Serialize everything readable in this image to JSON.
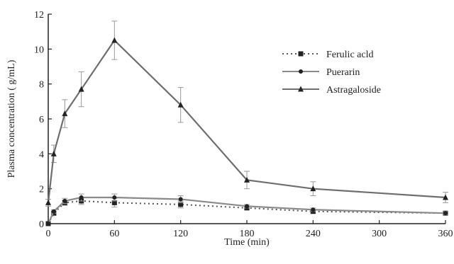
{
  "chart_data": {
    "type": "line",
    "title": "",
    "xlabel": "Time (min)",
    "ylabel": "Plasma concentration ( g/mL)",
    "xlim": [
      0,
      360
    ],
    "ylim": [
      0,
      12
    ],
    "xticks": [
      0,
      60,
      120,
      180,
      240,
      300,
      360
    ],
    "yticks": [
      0,
      2,
      4,
      6,
      8,
      10,
      12
    ],
    "grid": false,
    "legend_position": "top-right",
    "series": [
      {
        "name": "Ferulic acld",
        "style": "dotted",
        "marker": "square",
        "color": "#555555",
        "x": [
          0,
          5,
          15,
          30,
          60,
          120,
          180,
          240,
          360
        ],
        "y": [
          0,
          0.6,
          1.2,
          1.3,
          1.2,
          1.1,
          0.9,
          0.7,
          0.6
        ],
        "err": [
          0,
          0.1,
          0.15,
          0.2,
          0.25,
          0.2,
          0.1,
          0.1,
          0.1
        ]
      },
      {
        "name": "Puerarin",
        "style": "solid",
        "marker": "dot",
        "color": "#8a8a8a",
        "x": [
          0,
          5,
          15,
          30,
          60,
          120,
          180,
          240,
          360
        ],
        "y": [
          0,
          0.7,
          1.3,
          1.5,
          1.5,
          1.4,
          1.0,
          0.8,
          0.6
        ],
        "err": [
          0,
          0.1,
          0.15,
          0.2,
          0.2,
          0.2,
          0.1,
          0.1,
          0.1
        ]
      },
      {
        "name": "Astragaloside",
        "style": "solid",
        "marker": "triangle",
        "color": "#6e6e6e",
        "x": [
          0,
          5,
          15,
          30,
          60,
          120,
          180,
          240,
          360
        ],
        "y": [
          1.2,
          4.0,
          6.3,
          7.7,
          10.5,
          6.8,
          2.5,
          2.0,
          1.5
        ],
        "err": [
          0.2,
          0.5,
          0.8,
          1.0,
          1.1,
          1.0,
          0.5,
          0.4,
          0.3
        ]
      }
    ]
  }
}
